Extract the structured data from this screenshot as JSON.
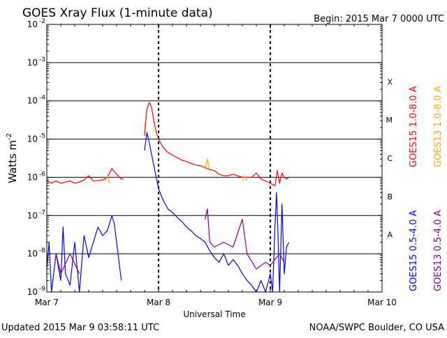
{
  "header": {
    "title": "GOES Xray Flux (1-minute data)",
    "begin": "Begin:  2015 Mar 7 0000 UTC"
  },
  "footer": {
    "updated": "Updated 2015 Mar  9 03:58:11 UTC",
    "credit": "NOAA/SWPC Boulder, CO USA"
  },
  "colors": {
    "goes15_long": "#ff0000",
    "goes13_long": "#ffa500",
    "goes15_short": "#0000ff",
    "goes13_short": "#800080",
    "grid": "#000000"
  },
  "chart_data": {
    "type": "line",
    "title": "GOES Xray Flux (1-minute data)",
    "xlabel": "Universal Time",
    "ylabel": "Watts m",
    "ylabel_superscript": "-2",
    "yscale": "log",
    "ylim": [
      1e-09,
      0.01
    ],
    "xlim": [
      "2015-03-07",
      "2015-03-10"
    ],
    "x_ticks": [
      "Mar 7",
      "Mar 8",
      "Mar 9",
      "Mar 10"
    ],
    "y_ticks": [
      {
        "value": 1e-09,
        "mant": "10",
        "exp": "-9"
      },
      {
        "value": 1e-08,
        "mant": "10",
        "exp": "-8"
      },
      {
        "value": 1e-07,
        "mant": "10",
        "exp": "-7"
      },
      {
        "value": 1e-06,
        "mant": "10",
        "exp": "-6"
      },
      {
        "value": 1e-05,
        "mant": "10",
        "exp": "-5"
      },
      {
        "value": 0.0001,
        "mant": "10",
        "exp": "-4"
      },
      {
        "value": 0.001,
        "mant": "10",
        "exp": "-3"
      },
      {
        "value": 0.01,
        "mant": "10",
        "exp": "-2"
      }
    ],
    "flare_classes": [
      {
        "label": "A",
        "value": 1e-08
      },
      {
        "label": "B",
        "value": 1e-07
      },
      {
        "label": "C",
        "value": 1e-06
      },
      {
        "label": "M",
        "value": 1e-05
      },
      {
        "label": "X",
        "value": 0.0001
      }
    ],
    "grid": true,
    "legend_position": "right",
    "series": [
      {
        "name": "GOES15 1.0-8.0 A",
        "color": "#ff0000",
        "points": [
          [
            "2015-03-07 00:00",
            8e-07
          ],
          [
            "2015-03-07 01:00",
            7e-07
          ],
          [
            "2015-03-07 02:00",
            8e-07
          ],
          [
            "2015-03-07 03:00",
            7e-07
          ],
          [
            "2015-03-07 04:00",
            7.5e-07
          ],
          [
            "2015-03-07 05:00",
            8e-07
          ],
          [
            "2015-03-07 06:00",
            7e-07
          ],
          [
            "2015-03-07 07:00",
            7.5e-07
          ],
          [
            "2015-03-07 08:00",
            8.5e-07
          ],
          [
            "2015-03-07 09:00",
            1.1e-06
          ],
          [
            "2015-03-07 10:00",
            8e-07
          ],
          [
            "2015-03-07 12:00",
            8.5e-07
          ],
          [
            "2015-03-07 13:00",
            1e-06
          ],
          [
            "2015-03-07 14:00",
            1.7e-06
          ],
          [
            "2015-03-07 15:00",
            1.2e-06
          ],
          [
            "2015-03-07 16:00",
            9e-07
          ],
          [
            "2015-03-07 16:30",
            9e-07
          ],
          [
            "2015-03-07 21:00",
            1.2e-05
          ],
          [
            "2015-03-07 21:30",
            6e-05
          ],
          [
            "2015-03-07 22:00",
            9e-05
          ],
          [
            "2015-03-07 22:30",
            7e-05
          ],
          [
            "2015-03-07 23:00",
            3e-05
          ],
          [
            "2015-03-07 23:30",
            1.5e-05
          ],
          [
            "2015-03-08 00:00",
            1e-05
          ],
          [
            "2015-03-08 01:00",
            6e-06
          ],
          [
            "2015-03-08 02:00",
            4.5e-06
          ],
          [
            "2015-03-08 03:00",
            3.8e-06
          ],
          [
            "2015-03-08 04:00",
            3.3e-06
          ],
          [
            "2015-03-08 05:00",
            2.8e-06
          ],
          [
            "2015-03-08 06:00",
            2.6e-06
          ],
          [
            "2015-03-08 07:00",
            2.3e-06
          ],
          [
            "2015-03-08 08:00",
            2.1e-06
          ],
          [
            "2015-03-08 09:00",
            2e-06
          ],
          [
            "2015-03-08 10:00",
            1.8e-06
          ],
          [
            "2015-03-08 11:00",
            1.6e-06
          ],
          [
            "2015-03-08 12:00",
            1.5e-06
          ],
          [
            "2015-03-08 13:00",
            1.2e-06
          ],
          [
            "2015-03-08 14:00",
            1.1e-06
          ],
          [
            "2015-03-08 15:00",
            1.1e-06
          ],
          [
            "2015-03-08 16:00",
            1.2e-06
          ],
          [
            "2015-03-08 17:00",
            1.1e-06
          ],
          [
            "2015-03-08 18:00",
            1e-06
          ],
          [
            "2015-03-08 19:00",
            1e-06
          ],
          [
            "2015-03-08 20:00",
            1e-06
          ],
          [
            "2015-03-08 21:00",
            1.3e-06
          ],
          [
            "2015-03-08 22:00",
            9e-07
          ],
          [
            "2015-03-08 23:00",
            8e-07
          ],
          [
            "2015-03-09 00:00",
            7e-07
          ],
          [
            "2015-03-09 01:00",
            6e-07
          ],
          [
            "2015-03-09 01:30",
            1.5e-06
          ],
          [
            "2015-03-09 02:00",
            7e-07
          ],
          [
            "2015-03-09 02:30",
            1.3e-06
          ],
          [
            "2015-03-09 03:00",
            1e-06
          ],
          [
            "2015-03-09 03:30",
            9e-07
          ],
          [
            "2015-03-09 04:00",
            1e-06
          ]
        ]
      },
      {
        "name": "GOES13 1.0-8.0 A",
        "color": "#ffa500",
        "points": [
          [
            "2015-03-07 12:30",
            8e-07
          ],
          [
            "2015-03-07 13:00",
            1.1e-06
          ],
          [
            "2015-03-07 13:30",
            7e-07
          ],
          [
            "2015-03-07 21:00",
            2e-05
          ],
          [
            "2015-03-07 21:10",
            3e-05
          ],
          [
            "2015-03-08 10:00",
            1.6e-06
          ],
          [
            "2015-03-08 10:30",
            3e-06
          ],
          [
            "2015-03-08 11:00",
            1.4e-06
          ],
          [
            "2015-03-08 18:00",
            8e-07
          ],
          [
            "2015-03-08 18:30",
            1.1e-06
          ],
          [
            "2015-03-08 19:00",
            8e-07
          ]
        ]
      },
      {
        "name": "GOES15 0.5-4.0 A",
        "color": "#0000ff",
        "points": [
          [
            "2015-03-07 00:00",
            4e-09
          ],
          [
            "2015-03-07 00:30",
            2e-08
          ],
          [
            "2015-03-07 01:00",
            1e-09
          ],
          [
            "2015-03-07 02:00",
            1e-08
          ],
          [
            "2015-03-07 03:00",
            2e-09
          ],
          [
            "2015-03-07 03:30",
            5e-08
          ],
          [
            "2015-03-07 04:00",
            3e-09
          ],
          [
            "2015-03-07 05:00",
            1.5e-09
          ],
          [
            "2015-03-07 06:00",
            2e-08
          ],
          [
            "2015-03-07 07:00",
            1e-09
          ],
          [
            "2015-03-07 08:00",
            3e-08
          ],
          [
            "2015-03-07 09:00",
            8e-09
          ],
          [
            "2015-03-07 10:00",
            2e-08
          ],
          [
            "2015-03-07 11:00",
            5e-08
          ],
          [
            "2015-03-07 12:00",
            3e-08
          ],
          [
            "2015-03-07 13:00",
            4e-08
          ],
          [
            "2015-03-07 14:00",
            1e-07
          ],
          [
            "2015-03-07 14:30",
            6e-08
          ],
          [
            "2015-03-07 15:00",
            2e-08
          ],
          [
            "2015-03-07 16:00",
            2e-09
          ],
          [
            "2015-03-07 21:00",
            5e-06
          ],
          [
            "2015-03-07 21:30",
            1.5e-05
          ],
          [
            "2015-03-07 22:00",
            8e-06
          ],
          [
            "2015-03-07 23:00",
            2e-06
          ],
          [
            "2015-03-08 00:00",
            5e-07
          ],
          [
            "2015-03-08 01:00",
            2.5e-07
          ],
          [
            "2015-03-08 02:00",
            1.5e-07
          ],
          [
            "2015-03-08 03:00",
            1.2e-07
          ],
          [
            "2015-03-08 04:00",
            9e-08
          ],
          [
            "2015-03-08 05:00",
            7e-08
          ],
          [
            "2015-03-08 06:00",
            5e-08
          ],
          [
            "2015-03-08 07:00",
            4e-08
          ],
          [
            "2015-03-08 08:00",
            3e-08
          ],
          [
            "2015-03-08 09:00",
            2.5e-08
          ],
          [
            "2015-03-08 10:00",
            2e-08
          ],
          [
            "2015-03-08 11:00",
            1.2e-08
          ],
          [
            "2015-03-08 12:00",
            8e-09
          ],
          [
            "2015-03-08 13:00",
            6e-09
          ],
          [
            "2015-03-08 14:00",
            1e-08
          ],
          [
            "2015-03-08 15:00",
            5e-09
          ],
          [
            "2015-03-08 16:00",
            7e-09
          ],
          [
            "2015-03-08 17:00",
            5e-09
          ],
          [
            "2015-03-08 18:00",
            3e-09
          ],
          [
            "2015-03-08 19:00",
            2e-09
          ],
          [
            "2015-03-08 20:00",
            1.5e-09
          ],
          [
            "2015-03-08 21:00",
            1e-09
          ],
          [
            "2015-03-08 22:00",
            2e-09
          ],
          [
            "2015-03-08 23:00",
            1e-09
          ],
          [
            "2015-03-09 00:00",
            3e-09
          ],
          [
            "2015-03-09 00:30",
            1e-09
          ],
          [
            "2015-03-09 01:00",
            5e-08
          ],
          [
            "2015-03-09 01:20",
            4e-07
          ],
          [
            "2015-03-09 01:40",
            3e-08
          ],
          [
            "2015-03-09 02:00",
            1e-09
          ],
          [
            "2015-03-09 02:30",
            2e-07
          ],
          [
            "2015-03-09 03:00",
            3e-09
          ],
          [
            "2015-03-09 03:30",
            1.5e-08
          ],
          [
            "2015-03-09 04:00",
            2e-08
          ]
        ]
      },
      {
        "name": "GOES13 0.5-4.0 A",
        "color": "#800080",
        "points": [
          [
            "2015-03-07 02:00",
            1e-08
          ],
          [
            "2015-03-07 03:00",
            3e-09
          ],
          [
            "2015-03-07 05:00",
            1e-08
          ],
          [
            "2015-03-07 07:00",
            3e-09
          ],
          [
            "2015-03-08 10:00",
            8e-08
          ],
          [
            "2015-03-08 10:30",
            1.5e-07
          ],
          [
            "2015-03-08 11:00",
            2e-08
          ],
          [
            "2015-03-08 12:00",
            1.5e-08
          ],
          [
            "2015-03-08 14:00",
            2e-08
          ],
          [
            "2015-03-08 16:00",
            1.5e-08
          ],
          [
            "2015-03-08 18:00",
            8e-08
          ],
          [
            "2015-03-08 19:00",
            1e-08
          ],
          [
            "2015-03-08 21:00",
            4e-09
          ],
          [
            "2015-03-08 23:00",
            6e-09
          ],
          [
            "2015-03-09 00:00",
            5e-09
          ],
          [
            "2015-03-09 02:00",
            1e-08
          ],
          [
            "2015-03-09 03:00",
            6e-09
          ]
        ]
      }
    ]
  }
}
